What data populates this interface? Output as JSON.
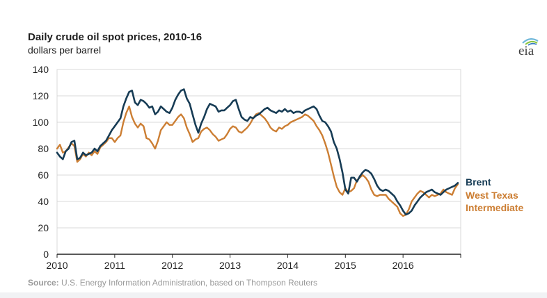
{
  "chart_data": {
    "type": "line",
    "title": "Daily crude oil spot prices, 2010-16",
    "subtitle": "dollars per barrel",
    "xlabel": "",
    "ylabel": "",
    "xlim": [
      2010,
      2017
    ],
    "ylim": [
      0,
      140
    ],
    "x_ticks": [
      "2010",
      "2011",
      "2012",
      "2013",
      "2014",
      "2015",
      "2016"
    ],
    "x_tick_values": [
      2010,
      2011,
      2012,
      2013,
      2014,
      2015,
      2016
    ],
    "y_ticks": [
      0,
      20,
      40,
      60,
      80,
      100,
      120,
      140
    ],
    "grid": true,
    "legend_placement": "right",
    "series": [
      {
        "name": "Brent",
        "color": "#173c55",
        "x": [
          2010.0,
          2010.05,
          2010.1,
          2010.15,
          2010.2,
          2010.25,
          2010.3,
          2010.35,
          2010.4,
          2010.45,
          2010.5,
          2010.55,
          2010.6,
          2010.65,
          2010.7,
          2010.75,
          2010.8,
          2010.85,
          2010.9,
          2010.95,
          2011.0,
          2011.05,
          2011.1,
          2011.15,
          2011.2,
          2011.25,
          2011.3,
          2011.35,
          2011.4,
          2011.45,
          2011.5,
          2011.55,
          2011.6,
          2011.65,
          2011.7,
          2011.75,
          2011.8,
          2011.85,
          2011.9,
          2011.95,
          2012.0,
          2012.05,
          2012.1,
          2012.15,
          2012.2,
          2012.25,
          2012.3,
          2012.35,
          2012.4,
          2012.45,
          2012.5,
          2012.55,
          2012.6,
          2012.65,
          2012.7,
          2012.75,
          2012.8,
          2012.85,
          2012.9,
          2012.95,
          2013.0,
          2013.05,
          2013.1,
          2013.15,
          2013.2,
          2013.25,
          2013.3,
          2013.35,
          2013.4,
          2013.45,
          2013.5,
          2013.55,
          2013.6,
          2013.65,
          2013.7,
          2013.75,
          2013.8,
          2013.85,
          2013.9,
          2013.95,
          2014.0,
          2014.05,
          2014.1,
          2014.15,
          2014.2,
          2014.25,
          2014.3,
          2014.35,
          2014.4,
          2014.45,
          2014.5,
          2014.55,
          2014.6,
          2014.65,
          2014.7,
          2014.75,
          2014.8,
          2014.85,
          2014.9,
          2014.95,
          2015.0,
          2015.05,
          2015.1,
          2015.15,
          2015.2,
          2015.25,
          2015.3,
          2015.35,
          2015.4,
          2015.45,
          2015.5,
          2015.55,
          2015.6,
          2015.65,
          2015.7,
          2015.75,
          2015.8,
          2015.85,
          2015.9,
          2015.95,
          2016.0,
          2016.05,
          2016.1,
          2016.15,
          2016.2,
          2016.25,
          2016.3,
          2016.35,
          2016.4,
          2016.45,
          2016.5,
          2016.55,
          2016.6,
          2016.65,
          2016.7,
          2016.75,
          2016.8,
          2016.85,
          2016.9,
          2016.95
        ],
        "values": [
          77,
          74,
          72,
          78,
          80,
          85,
          86,
          72,
          73,
          77,
          75,
          76,
          77,
          80,
          78,
          82,
          84,
          86,
          90,
          94,
          97,
          100,
          103,
          112,
          118,
          123,
          124,
          115,
          113,
          117,
          116,
          114,
          111,
          112,
          106,
          108,
          112,
          110,
          108,
          107,
          111,
          117,
          121,
          124,
          125,
          118,
          114,
          106,
          98,
          92,
          99,
          104,
          110,
          114,
          113,
          112,
          108,
          109,
          109,
          111,
          113,
          116,
          117,
          110,
          104,
          102,
          101,
          104,
          103,
          105,
          106,
          108,
          110,
          111,
          109,
          108,
          107,
          109,
          108,
          110,
          108,
          109,
          107,
          108,
          108,
          107,
          109,
          110,
          111,
          112,
          110,
          105,
          101,
          100,
          97,
          93,
          85,
          80,
          72,
          62,
          49,
          46,
          58,
          58,
          55,
          59,
          62,
          64,
          63,
          61,
          57,
          52,
          49,
          48,
          49,
          48,
          46,
          44,
          40,
          37,
          33,
          30,
          31,
          33,
          37,
          40,
          43,
          45,
          47,
          48,
          49,
          47,
          46,
          45,
          47,
          49,
          50,
          51,
          52,
          54
        ]
      },
      {
        "name": "West Texas Intermediate",
        "color": "#cc7e33",
        "x": [
          2010.0,
          2010.05,
          2010.1,
          2010.15,
          2010.2,
          2010.25,
          2010.3,
          2010.35,
          2010.4,
          2010.45,
          2010.5,
          2010.55,
          2010.6,
          2010.65,
          2010.7,
          2010.75,
          2010.8,
          2010.85,
          2010.9,
          2010.95,
          2011.0,
          2011.05,
          2011.1,
          2011.15,
          2011.2,
          2011.25,
          2011.3,
          2011.35,
          2011.4,
          2011.45,
          2011.5,
          2011.55,
          2011.6,
          2011.65,
          2011.7,
          2011.75,
          2011.8,
          2011.85,
          2011.9,
          2011.95,
          2012.0,
          2012.05,
          2012.1,
          2012.15,
          2012.2,
          2012.25,
          2012.3,
          2012.35,
          2012.4,
          2012.45,
          2012.5,
          2012.55,
          2012.6,
          2012.65,
          2012.7,
          2012.75,
          2012.8,
          2012.85,
          2012.9,
          2012.95,
          2013.0,
          2013.05,
          2013.1,
          2013.15,
          2013.2,
          2013.25,
          2013.3,
          2013.35,
          2013.4,
          2013.45,
          2013.5,
          2013.55,
          2013.6,
          2013.65,
          2013.7,
          2013.75,
          2013.8,
          2013.85,
          2013.9,
          2013.95,
          2014.0,
          2014.05,
          2014.1,
          2014.15,
          2014.2,
          2014.25,
          2014.3,
          2014.35,
          2014.4,
          2014.45,
          2014.5,
          2014.55,
          2014.6,
          2014.65,
          2014.7,
          2014.75,
          2014.8,
          2014.85,
          2014.9,
          2014.95,
          2015.0,
          2015.05,
          2015.1,
          2015.15,
          2015.2,
          2015.25,
          2015.3,
          2015.35,
          2015.4,
          2015.45,
          2015.5,
          2015.55,
          2015.6,
          2015.65,
          2015.7,
          2015.75,
          2015.8,
          2015.85,
          2015.9,
          2015.95,
          2016.0,
          2016.05,
          2016.1,
          2016.15,
          2016.2,
          2016.25,
          2016.3,
          2016.35,
          2016.4,
          2016.45,
          2016.5,
          2016.55,
          2016.6,
          2016.65,
          2016.7,
          2016.75,
          2016.8,
          2016.85,
          2016.9,
          2016.95
        ],
        "values": [
          80,
          83,
          77,
          78,
          81,
          84,
          82,
          70,
          72,
          76,
          74,
          77,
          75,
          78,
          76,
          81,
          83,
          85,
          88,
          88,
          85,
          88,
          90,
          100,
          107,
          112,
          104,
          99,
          96,
          99,
          97,
          88,
          87,
          84,
          80,
          86,
          94,
          97,
          100,
          98,
          98,
          101,
          104,
          106,
          103,
          96,
          91,
          85,
          87,
          88,
          93,
          95,
          96,
          94,
          91,
          89,
          86,
          87,
          88,
          91,
          95,
          97,
          96,
          93,
          92,
          94,
          96,
          99,
          103,
          106,
          107,
          105,
          103,
          100,
          96,
          94,
          93,
          96,
          95,
          97,
          98,
          100,
          101,
          102,
          103,
          104,
          106,
          105,
          103,
          101,
          97,
          94,
          90,
          84,
          77,
          68,
          59,
          51,
          47,
          45,
          50,
          47,
          48,
          50,
          56,
          58,
          60,
          58,
          55,
          49,
          45,
          44,
          45,
          45,
          45,
          42,
          40,
          38,
          36,
          31,
          29,
          30,
          34,
          40,
          43,
          46,
          48,
          47,
          45,
          43,
          45,
          44,
          45,
          46,
          49,
          47,
          46,
          45,
          50,
          53
        ]
      }
    ],
    "legend": [
      "Brent",
      "West Texas",
      "Intermediate"
    ],
    "source_label": "Source:",
    "source_text": "U.S. Energy Information Administration, based on Thompson Reuters"
  },
  "logo": {
    "text": "eia"
  },
  "colors": {
    "brent": "#173c55",
    "wti": "#cc7e33",
    "grid": "#d9d9d9"
  }
}
